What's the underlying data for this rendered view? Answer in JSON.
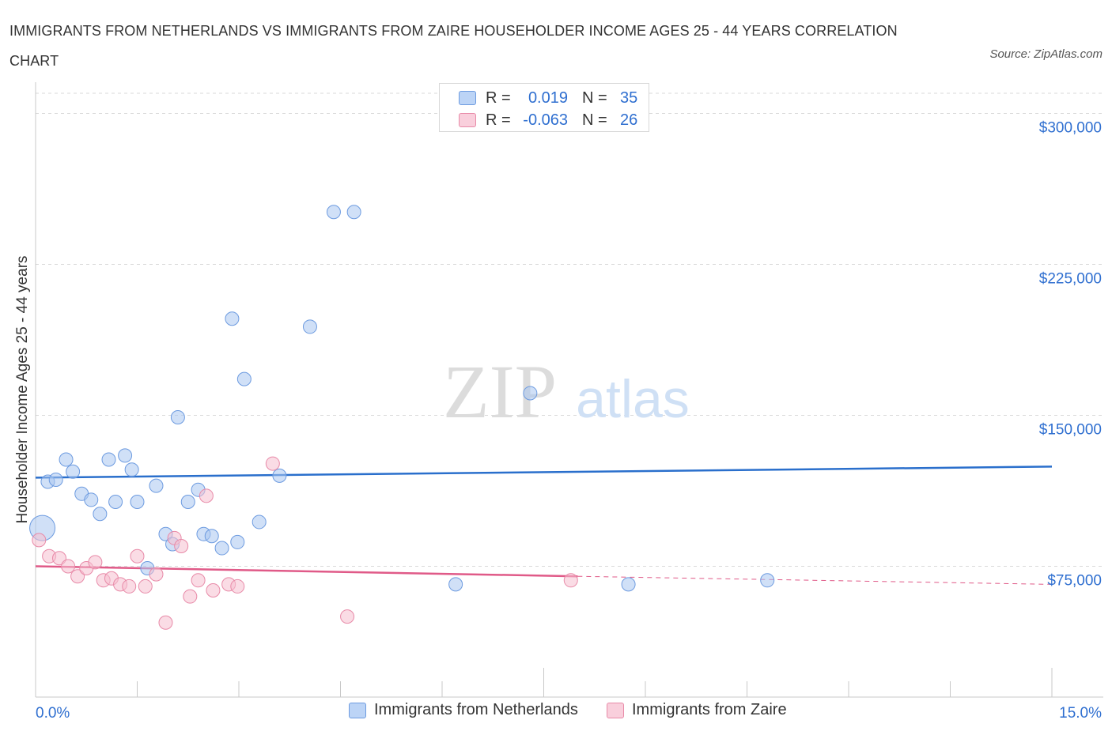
{
  "chart_data": {
    "type": "scatter",
    "title": "IMMIGRANTS FROM NETHERLANDS VS IMMIGRANTS FROM ZAIRE HOUSEHOLDER INCOME AGES 25 - 44 YEARS CORRELATION CHART",
    "source": "Source: ZipAtlas.com",
    "ylabel": "Householder Income Ages 25 - 44 years",
    "xlabel": "",
    "xlim": [
      0,
      15
    ],
    "ylim": [
      10000,
      310000
    ],
    "x_tick_labels": [
      "0.0%",
      "15.0%"
    ],
    "y_ticks": [
      75000,
      150000,
      225000,
      300000
    ],
    "y_tick_labels": [
      "$75,000",
      "$150,000",
      "$225,000",
      "$300,000"
    ],
    "watermark": "ZIPatlas",
    "grid": true,
    "legend_placement": "top-center",
    "series": [
      {
        "name": "Immigrants from Netherlands",
        "color": "#a9c6f0",
        "stroke": "#6d9be0",
        "line_color": "#2a6fcc",
        "R_label": "R =",
        "R": "0.019",
        "N_label": "N =",
        "N": "35",
        "trend": {
          "x0": 0,
          "y0": 119000,
          "x1": 15,
          "y1": 124500
        },
        "points": [
          {
            "x": 0.1,
            "y": 94000,
            "big": true
          },
          {
            "x": 0.18,
            "y": 117000
          },
          {
            "x": 0.3,
            "y": 118000
          },
          {
            "x": 0.45,
            "y": 128000
          },
          {
            "x": 0.55,
            "y": 122000
          },
          {
            "x": 0.68,
            "y": 111000
          },
          {
            "x": 0.82,
            "y": 108000
          },
          {
            "x": 0.95,
            "y": 101000
          },
          {
            "x": 1.08,
            "y": 128000
          },
          {
            "x": 1.18,
            "y": 107000
          },
          {
            "x": 1.32,
            "y": 130000
          },
          {
            "x": 1.42,
            "y": 123000
          },
          {
            "x": 1.5,
            "y": 107000
          },
          {
            "x": 1.65,
            "y": 74000
          },
          {
            "x": 1.78,
            "y": 115000
          },
          {
            "x": 1.92,
            "y": 91000
          },
          {
            "x": 2.02,
            "y": 86000
          },
          {
            "x": 2.1,
            "y": 149000
          },
          {
            "x": 2.25,
            "y": 107000
          },
          {
            "x": 2.4,
            "y": 113000
          },
          {
            "x": 2.48,
            "y": 91000
          },
          {
            "x": 2.6,
            "y": 90000
          },
          {
            "x": 2.75,
            "y": 84000
          },
          {
            "x": 2.9,
            "y": 198000
          },
          {
            "x": 2.98,
            "y": 87000
          },
          {
            "x": 3.08,
            "y": 168000
          },
          {
            "x": 3.3,
            "y": 97000
          },
          {
            "x": 3.6,
            "y": 120000
          },
          {
            "x": 4.05,
            "y": 194000
          },
          {
            "x": 4.4,
            "y": 251000
          },
          {
            "x": 4.7,
            "y": 251000
          },
          {
            "x": 6.2,
            "y": 66000
          },
          {
            "x": 7.3,
            "y": 161000
          },
          {
            "x": 8.75,
            "y": 66000
          },
          {
            "x": 10.8,
            "y": 68000
          }
        ]
      },
      {
        "name": "Immigrants from Zaire",
        "color": "#f6bfd0",
        "stroke": "#e88aa8",
        "line_color": "#e05a88",
        "R_label": "R =",
        "R": "-0.063",
        "N_label": "N =",
        "N": "26",
        "trend": {
          "x0": 0,
          "y0": 75000,
          "x1": 8.0,
          "y1": 70000,
          "dash_x1": 15,
          "dash_y1": 66000
        },
        "points": [
          {
            "x": 0.05,
            "y": 88000
          },
          {
            "x": 0.2,
            "y": 80000
          },
          {
            "x": 0.35,
            "y": 79000
          },
          {
            "x": 0.48,
            "y": 75000
          },
          {
            "x": 0.62,
            "y": 70000
          },
          {
            "x": 0.75,
            "y": 74000
          },
          {
            "x": 0.88,
            "y": 77000
          },
          {
            "x": 1.0,
            "y": 68000
          },
          {
            "x": 1.12,
            "y": 69000
          },
          {
            "x": 1.25,
            "y": 66000
          },
          {
            "x": 1.38,
            "y": 65000
          },
          {
            "x": 1.5,
            "y": 80000
          },
          {
            "x": 1.62,
            "y": 65000
          },
          {
            "x": 1.78,
            "y": 71000
          },
          {
            "x": 1.92,
            "y": 47000
          },
          {
            "x": 2.05,
            "y": 89000
          },
          {
            "x": 2.15,
            "y": 85000
          },
          {
            "x": 2.28,
            "y": 60000
          },
          {
            "x": 2.4,
            "y": 68000
          },
          {
            "x": 2.52,
            "y": 110000
          },
          {
            "x": 2.62,
            "y": 63000
          },
          {
            "x": 2.85,
            "y": 66000
          },
          {
            "x": 2.98,
            "y": 65000
          },
          {
            "x": 3.5,
            "y": 126000
          },
          {
            "x": 4.6,
            "y": 50000
          },
          {
            "x": 7.9,
            "y": 68000
          }
        ]
      }
    ]
  }
}
